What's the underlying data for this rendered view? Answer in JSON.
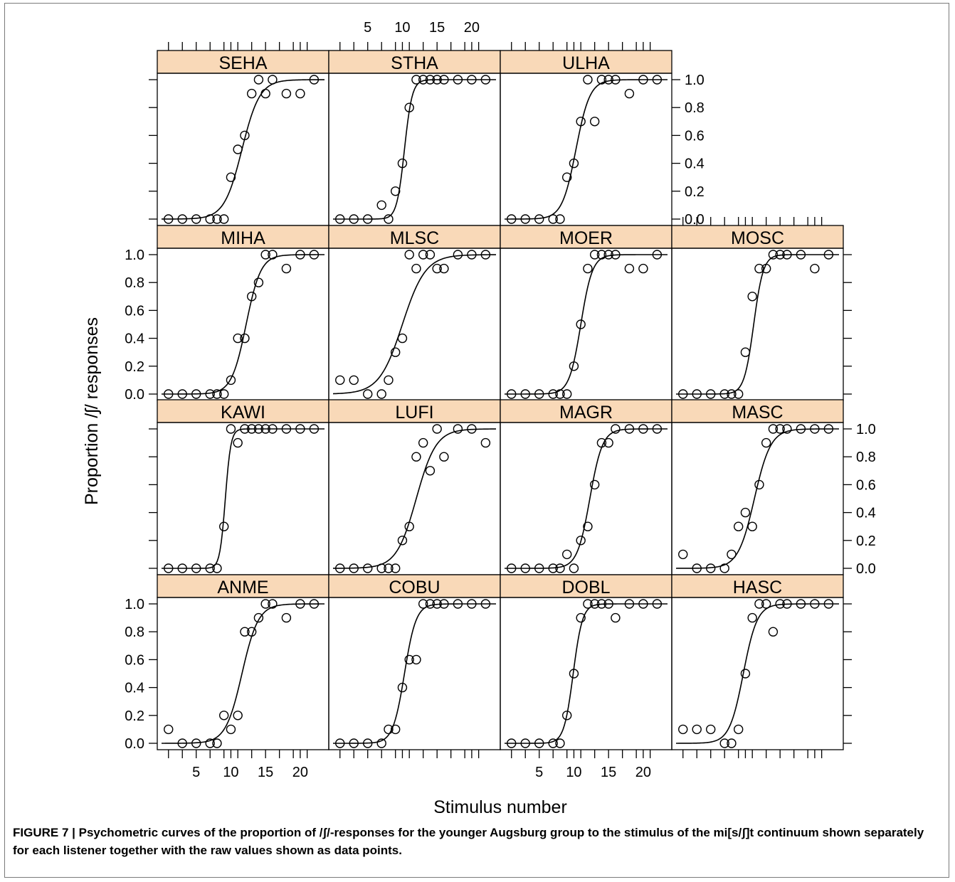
{
  "chart_data": {
    "type": "scatter",
    "layout": "trellis 4x4 (empty top-right cell)",
    "ylabel": "Proportion /ʃ/ responses",
    "xlabel": "Stimulus number",
    "x_ticks": [
      5,
      10,
      15,
      20
    ],
    "y_ticks": [
      "0.0",
      "0.2",
      "0.4",
      "0.6",
      "0.8",
      "1.0"
    ],
    "xlim": [
      0,
      23.5
    ],
    "ylim": [
      0,
      1
    ],
    "strip_color": "#f9d9b8",
    "panels": [
      {
        "name": "SEHA",
        "curve": {
          "mid": 11.6,
          "slope": 0.78,
          "lo": 0
        },
        "points": [
          [
            1,
            0
          ],
          [
            3,
            0
          ],
          [
            5,
            0
          ],
          [
            7,
            0
          ],
          [
            8,
            0
          ],
          [
            9,
            0
          ],
          [
            10,
            0.3
          ],
          [
            11,
            0.5
          ],
          [
            12,
            0.6
          ],
          [
            13,
            0.9
          ],
          [
            14,
            1.0
          ],
          [
            15,
            0.9
          ],
          [
            16,
            1.0
          ],
          [
            18,
            0.9
          ],
          [
            20,
            0.9
          ],
          [
            22,
            1.0
          ]
        ]
      },
      {
        "name": "STHA",
        "curve": {
          "mid": 10.3,
          "slope": 1.8,
          "lo": 0
        },
        "points": [
          [
            1,
            0
          ],
          [
            3,
            0
          ],
          [
            5,
            0
          ],
          [
            7,
            0.1
          ],
          [
            8,
            0
          ],
          [
            9,
            0.2
          ],
          [
            10,
            0.4
          ],
          [
            11,
            0.8
          ],
          [
            12,
            1.0
          ],
          [
            13,
            1.0
          ],
          [
            14,
            1.0
          ],
          [
            15,
            1.0
          ],
          [
            16,
            1.0
          ],
          [
            18,
            1.0
          ],
          [
            20,
            1.0
          ],
          [
            22,
            1.0
          ]
        ]
      },
      {
        "name": "ULHA",
        "curve": {
          "mid": 10.3,
          "slope": 1.0,
          "lo": 0
        },
        "points": [
          [
            1,
            0
          ],
          [
            3,
            0
          ],
          [
            5,
            0
          ],
          [
            7,
            0
          ],
          [
            8,
            0
          ],
          [
            9,
            0.3
          ],
          [
            10,
            0.4
          ],
          [
            11,
            0.7
          ],
          [
            12,
            1.0
          ],
          [
            13,
            0.7
          ],
          [
            14,
            1.0
          ],
          [
            15,
            1.0
          ],
          [
            16,
            1.0
          ],
          [
            18,
            0.9
          ],
          [
            20,
            1.0
          ],
          [
            22,
            1.0
          ]
        ]
      },
      {
        "name": "MIHA",
        "curve": {
          "mid": 12.2,
          "slope": 0.95,
          "lo": 0
        },
        "points": [
          [
            1,
            0
          ],
          [
            3,
            0
          ],
          [
            5,
            0
          ],
          [
            7,
            0
          ],
          [
            8,
            0
          ],
          [
            9,
            0
          ],
          [
            10,
            0.1
          ],
          [
            11,
            0.4
          ],
          [
            12,
            0.4
          ],
          [
            13,
            0.7
          ],
          [
            14,
            0.8
          ],
          [
            15,
            1.0
          ],
          [
            16,
            1.0
          ],
          [
            18,
            0.9
          ],
          [
            20,
            1.0
          ],
          [
            22,
            1.0
          ]
        ]
      },
      {
        "name": "MLSC",
        "curve": {
          "mid": 10.0,
          "slope": 0.6,
          "lo": 0
        },
        "points": [
          [
            1,
            0.1
          ],
          [
            3,
            0.1
          ],
          [
            5,
            0
          ],
          [
            7,
            0
          ],
          [
            8,
            0.1
          ],
          [
            9,
            0.3
          ],
          [
            10,
            0.4
          ],
          [
            11,
            1.0
          ],
          [
            12,
            0.9
          ],
          [
            13,
            1.0
          ],
          [
            14,
            1.0
          ],
          [
            15,
            0.9
          ],
          [
            16,
            0.9
          ],
          [
            18,
            1.0
          ],
          [
            20,
            1.0
          ],
          [
            22,
            1.0
          ]
        ]
      },
      {
        "name": "MOER",
        "curve": {
          "mid": 11.0,
          "slope": 1.2,
          "lo": 0
        },
        "points": [
          [
            1,
            0
          ],
          [
            3,
            0
          ],
          [
            5,
            0
          ],
          [
            7,
            0
          ],
          [
            8,
            0
          ],
          [
            9,
            0
          ],
          [
            10,
            0.2
          ],
          [
            11,
            0.5
          ],
          [
            12,
            0.9
          ],
          [
            13,
            1.0
          ],
          [
            14,
            1.0
          ],
          [
            15,
            1.0
          ],
          [
            16,
            1.0
          ],
          [
            18,
            0.9
          ],
          [
            20,
            0.9
          ],
          [
            22,
            1.0
          ]
        ]
      },
      {
        "name": "MOSC",
        "curve": {
          "mid": 11.2,
          "slope": 1.45,
          "lo": 0
        },
        "points": [
          [
            1,
            0
          ],
          [
            3,
            0
          ],
          [
            5,
            0
          ],
          [
            7,
            0
          ],
          [
            8,
            0
          ],
          [
            9,
            0
          ],
          [
            10,
            0.3
          ],
          [
            11,
            0.7
          ],
          [
            12,
            0.9
          ],
          [
            13,
            0.9
          ],
          [
            14,
            1.0
          ],
          [
            15,
            1.0
          ],
          [
            16,
            1.0
          ],
          [
            18,
            1.0
          ],
          [
            20,
            0.9
          ],
          [
            22,
            1.0
          ]
        ]
      },
      {
        "name": "KAWI",
        "curve": {
          "mid": 9.2,
          "slope": 2.5,
          "lo": 0
        },
        "points": [
          [
            1,
            0
          ],
          [
            3,
            0
          ],
          [
            5,
            0
          ],
          [
            7,
            0
          ],
          [
            8,
            0
          ],
          [
            9,
            0.3
          ],
          [
            10,
            1.0
          ],
          [
            11,
            0.9
          ],
          [
            12,
            1.0
          ],
          [
            13,
            1.0
          ],
          [
            14,
            1.0
          ],
          [
            15,
            1.0
          ],
          [
            16,
            1.0
          ],
          [
            18,
            1.0
          ],
          [
            20,
            1.0
          ],
          [
            22,
            1.0
          ]
        ]
      },
      {
        "name": "LUFI",
        "curve": {
          "mid": 12.0,
          "slope": 0.7,
          "lo": 0
        },
        "points": [
          [
            1,
            0
          ],
          [
            3,
            0
          ],
          [
            5,
            0
          ],
          [
            7,
            0
          ],
          [
            8,
            0
          ],
          [
            9,
            0
          ],
          [
            10,
            0.2
          ],
          [
            11,
            0.3
          ],
          [
            12,
            0.8
          ],
          [
            13,
            0.9
          ],
          [
            14,
            0.7
          ],
          [
            15,
            1.0
          ],
          [
            16,
            0.8
          ],
          [
            18,
            1.0
          ],
          [
            20,
            1.0
          ],
          [
            22,
            0.9
          ]
        ]
      },
      {
        "name": "MAGR",
        "curve": {
          "mid": 12.3,
          "slope": 1.1,
          "lo": 0
        },
        "points": [
          [
            1,
            0
          ],
          [
            3,
            0
          ],
          [
            5,
            0
          ],
          [
            7,
            0
          ],
          [
            8,
            0
          ],
          [
            9,
            0.1
          ],
          [
            10,
            0
          ],
          [
            11,
            0.2
          ],
          [
            12,
            0.3
          ],
          [
            13,
            0.6
          ],
          [
            14,
            0.9
          ],
          [
            15,
            0.9
          ],
          [
            16,
            1.0
          ],
          [
            18,
            1.0
          ],
          [
            20,
            1.0
          ],
          [
            22,
            1.0
          ]
        ]
      },
      {
        "name": "MASC",
        "curve": {
          "mid": 11.3,
          "slope": 0.85,
          "lo": 0
        },
        "points": [
          [
            1,
            0.1
          ],
          [
            3,
            0
          ],
          [
            5,
            0
          ],
          [
            7,
            0
          ],
          [
            8,
            0.1
          ],
          [
            9,
            0.3
          ],
          [
            10,
            0.4
          ],
          [
            11,
            0.3
          ],
          [
            12,
            0.6
          ],
          [
            13,
            0.9
          ],
          [
            14,
            1.0
          ],
          [
            15,
            1.0
          ],
          [
            16,
            1.0
          ],
          [
            18,
            1.0
          ],
          [
            20,
            1.0
          ],
          [
            22,
            1.0
          ]
        ]
      },
      {
        "name": "ANME",
        "curve": {
          "mid": 11.6,
          "slope": 0.85,
          "lo": 0
        },
        "points": [
          [
            1,
            0.1
          ],
          [
            3,
            0
          ],
          [
            5,
            0
          ],
          [
            7,
            0
          ],
          [
            8,
            0
          ],
          [
            9,
            0.2
          ],
          [
            10,
            0.1
          ],
          [
            11,
            0.2
          ],
          [
            12,
            0.8
          ],
          [
            13,
            0.8
          ],
          [
            14,
            0.9
          ],
          [
            15,
            1.0
          ],
          [
            16,
            1.0
          ],
          [
            18,
            0.9
          ],
          [
            20,
            1.0
          ],
          [
            22,
            1.0
          ]
        ]
      },
      {
        "name": "COBU",
        "curve": {
          "mid": 10.3,
          "slope": 1.2,
          "lo": 0
        },
        "points": [
          [
            1,
            0
          ],
          [
            3,
            0
          ],
          [
            5,
            0
          ],
          [
            7,
            0
          ],
          [
            8,
            0.1
          ],
          [
            9,
            0.1
          ],
          [
            10,
            0.4
          ],
          [
            11,
            0.6
          ],
          [
            12,
            0.6
          ],
          [
            13,
            1.0
          ],
          [
            14,
            1.0
          ],
          [
            15,
            1.0
          ],
          [
            16,
            1.0
          ],
          [
            18,
            1.0
          ],
          [
            20,
            1.0
          ],
          [
            22,
            1.0
          ]
        ]
      },
      {
        "name": "DOBL",
        "curve": {
          "mid": 9.9,
          "slope": 1.5,
          "lo": 0
        },
        "points": [
          [
            1,
            0
          ],
          [
            3,
            0
          ],
          [
            5,
            0
          ],
          [
            7,
            0
          ],
          [
            8,
            0
          ],
          [
            9,
            0.2
          ],
          [
            10,
            0.5
          ],
          [
            11,
            0.9
          ],
          [
            12,
            1.0
          ],
          [
            13,
            1.0
          ],
          [
            14,
            1.0
          ],
          [
            15,
            1.0
          ],
          [
            16,
            0.9
          ],
          [
            18,
            1.0
          ],
          [
            20,
            1.0
          ],
          [
            22,
            1.0
          ]
        ]
      },
      {
        "name": "HASC",
        "curve": {
          "mid": 9.7,
          "slope": 1.0,
          "lo": 0
        },
        "points": [
          [
            1,
            0.1
          ],
          [
            3,
            0.1
          ],
          [
            5,
            0.1
          ],
          [
            7,
            0
          ],
          [
            8,
            0
          ],
          [
            9,
            0.1
          ],
          [
            10,
            0.5
          ],
          [
            11,
            0.9
          ],
          [
            12,
            1.0
          ],
          [
            13,
            1.0
          ],
          [
            14,
            0.8
          ],
          [
            15,
            1.0
          ],
          [
            16,
            1.0
          ],
          [
            18,
            1.0
          ],
          [
            20,
            1.0
          ],
          [
            22,
            1.0
          ]
        ]
      }
    ]
  },
  "caption": "FIGURE 7 | Psychometric curves of the proportion of /ʃ/-responses for the younger Augsburg group to the stimulus of the mi[s/ʃ]t continuum shown separately for each listener together with the raw values shown as data points."
}
